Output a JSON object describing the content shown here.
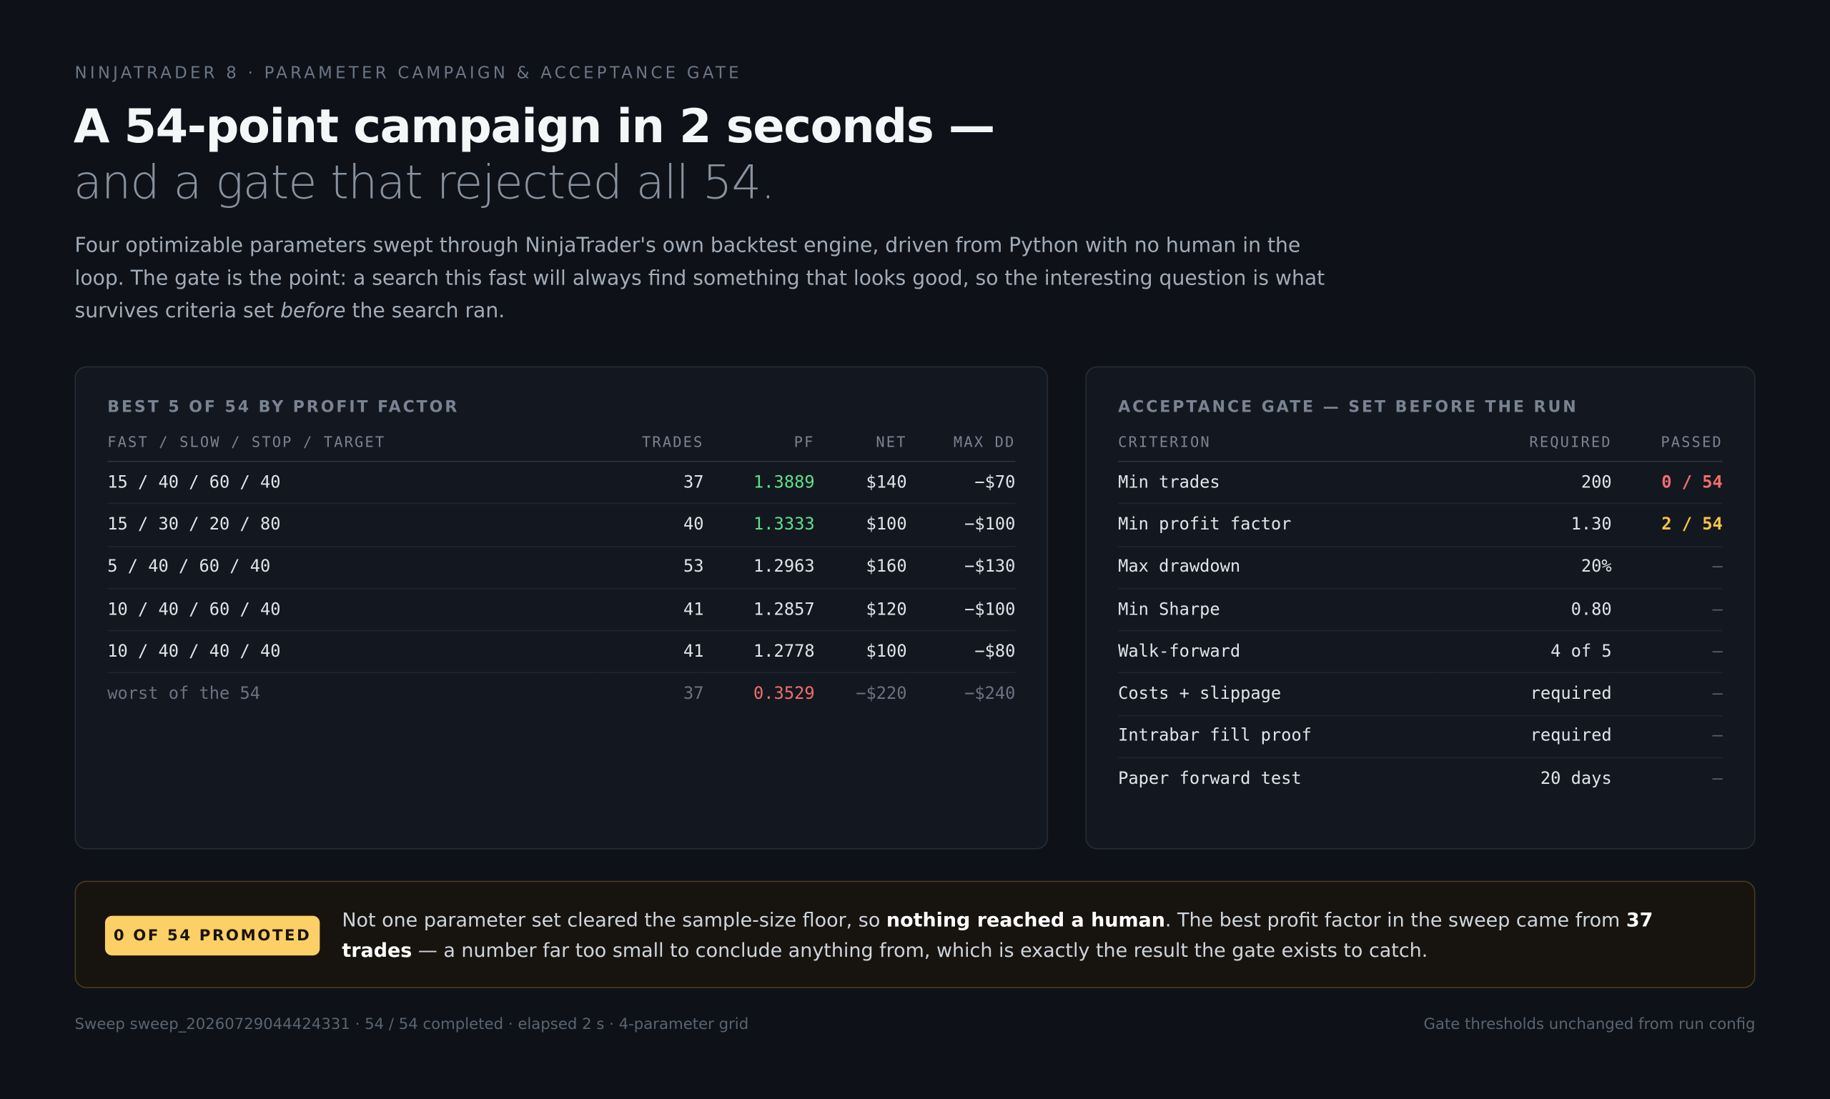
{
  "header": {
    "eyebrow": "NINJATRADER 8 · PARAMETER CAMPAIGN & ACCEPTANCE GATE",
    "title_line1": "A 54-point campaign in 2 seconds —",
    "title_line2": "and a gate that rejected all 54.",
    "intro_start": "Four optimizable parameters swept through NinjaTrader's own backtest engine, driven from Python with no human in the loop. The gate is the point: a search this fast will always find something that looks good, so the interesting question is what survives criteria set ",
    "intro_em": "before",
    "intro_end": " the search ran."
  },
  "left_panel": {
    "title": "BEST 5 OF 54 BY PROFIT FACTOR",
    "columns": [
      "FAST / SLOW / STOP / TARGET",
      "TRADES",
      "PF",
      "NET",
      "MAX DD"
    ],
    "rows": [
      [
        "15 / 40 / 60 / 40",
        "37",
        "1.3889",
        "$140",
        "−$70"
      ],
      [
        "15 / 30 / 20 / 80",
        "40",
        "1.3333",
        "$100",
        "−$100"
      ],
      [
        "5 / 40 / 60 / 40",
        "53",
        "1.2963",
        "$160",
        "−$130"
      ],
      [
        "10 / 40 / 60 / 40",
        "41",
        "1.2857",
        "$120",
        "−$100"
      ],
      [
        "10 / 40 / 40 / 40",
        "41",
        "1.2778",
        "$100",
        "−$80"
      ],
      [
        "worst of the 54",
        "37",
        "0.3529",
        "−$220",
        "−$240"
      ]
    ]
  },
  "right_panel": {
    "title": "ACCEPTANCE GATE — SET BEFORE THE RUN",
    "columns": [
      "CRITERION",
      "REQUIRED",
      "PASSED"
    ],
    "rows": [
      [
        "Min trades",
        "200",
        "0 / 54"
      ],
      [
        "Min profit factor",
        "1.30",
        "2 / 54"
      ],
      [
        "Max drawdown",
        "20%",
        "—"
      ],
      [
        "Min Sharpe",
        "0.80",
        "—"
      ],
      [
        "Walk-forward",
        "4 of 5",
        "—"
      ],
      [
        "Costs + slippage",
        "required",
        "—"
      ],
      [
        "Intrabar fill proof",
        "required",
        "—"
      ],
      [
        "Paper forward test",
        "20 days",
        "—"
      ]
    ]
  },
  "callout": {
    "badge": "0 OF 54 PROMOTED",
    "text_1": "Not one parameter set cleared the sample-size floor, so ",
    "bold_1": "nothing reached a human",
    "text_2": ". The best profit factor in the sweep came from ",
    "bold_2": "37 trades",
    "text_3": " — a number far too small to conclude anything from, which is exactly the result the gate exists to catch."
  },
  "footer": {
    "left": "Sweep sweep_20260729044424331 · 54 / 54 completed · elapsed 2 s · 4-parameter grid",
    "right": "Gate thresholds unchanged from run config"
  }
}
